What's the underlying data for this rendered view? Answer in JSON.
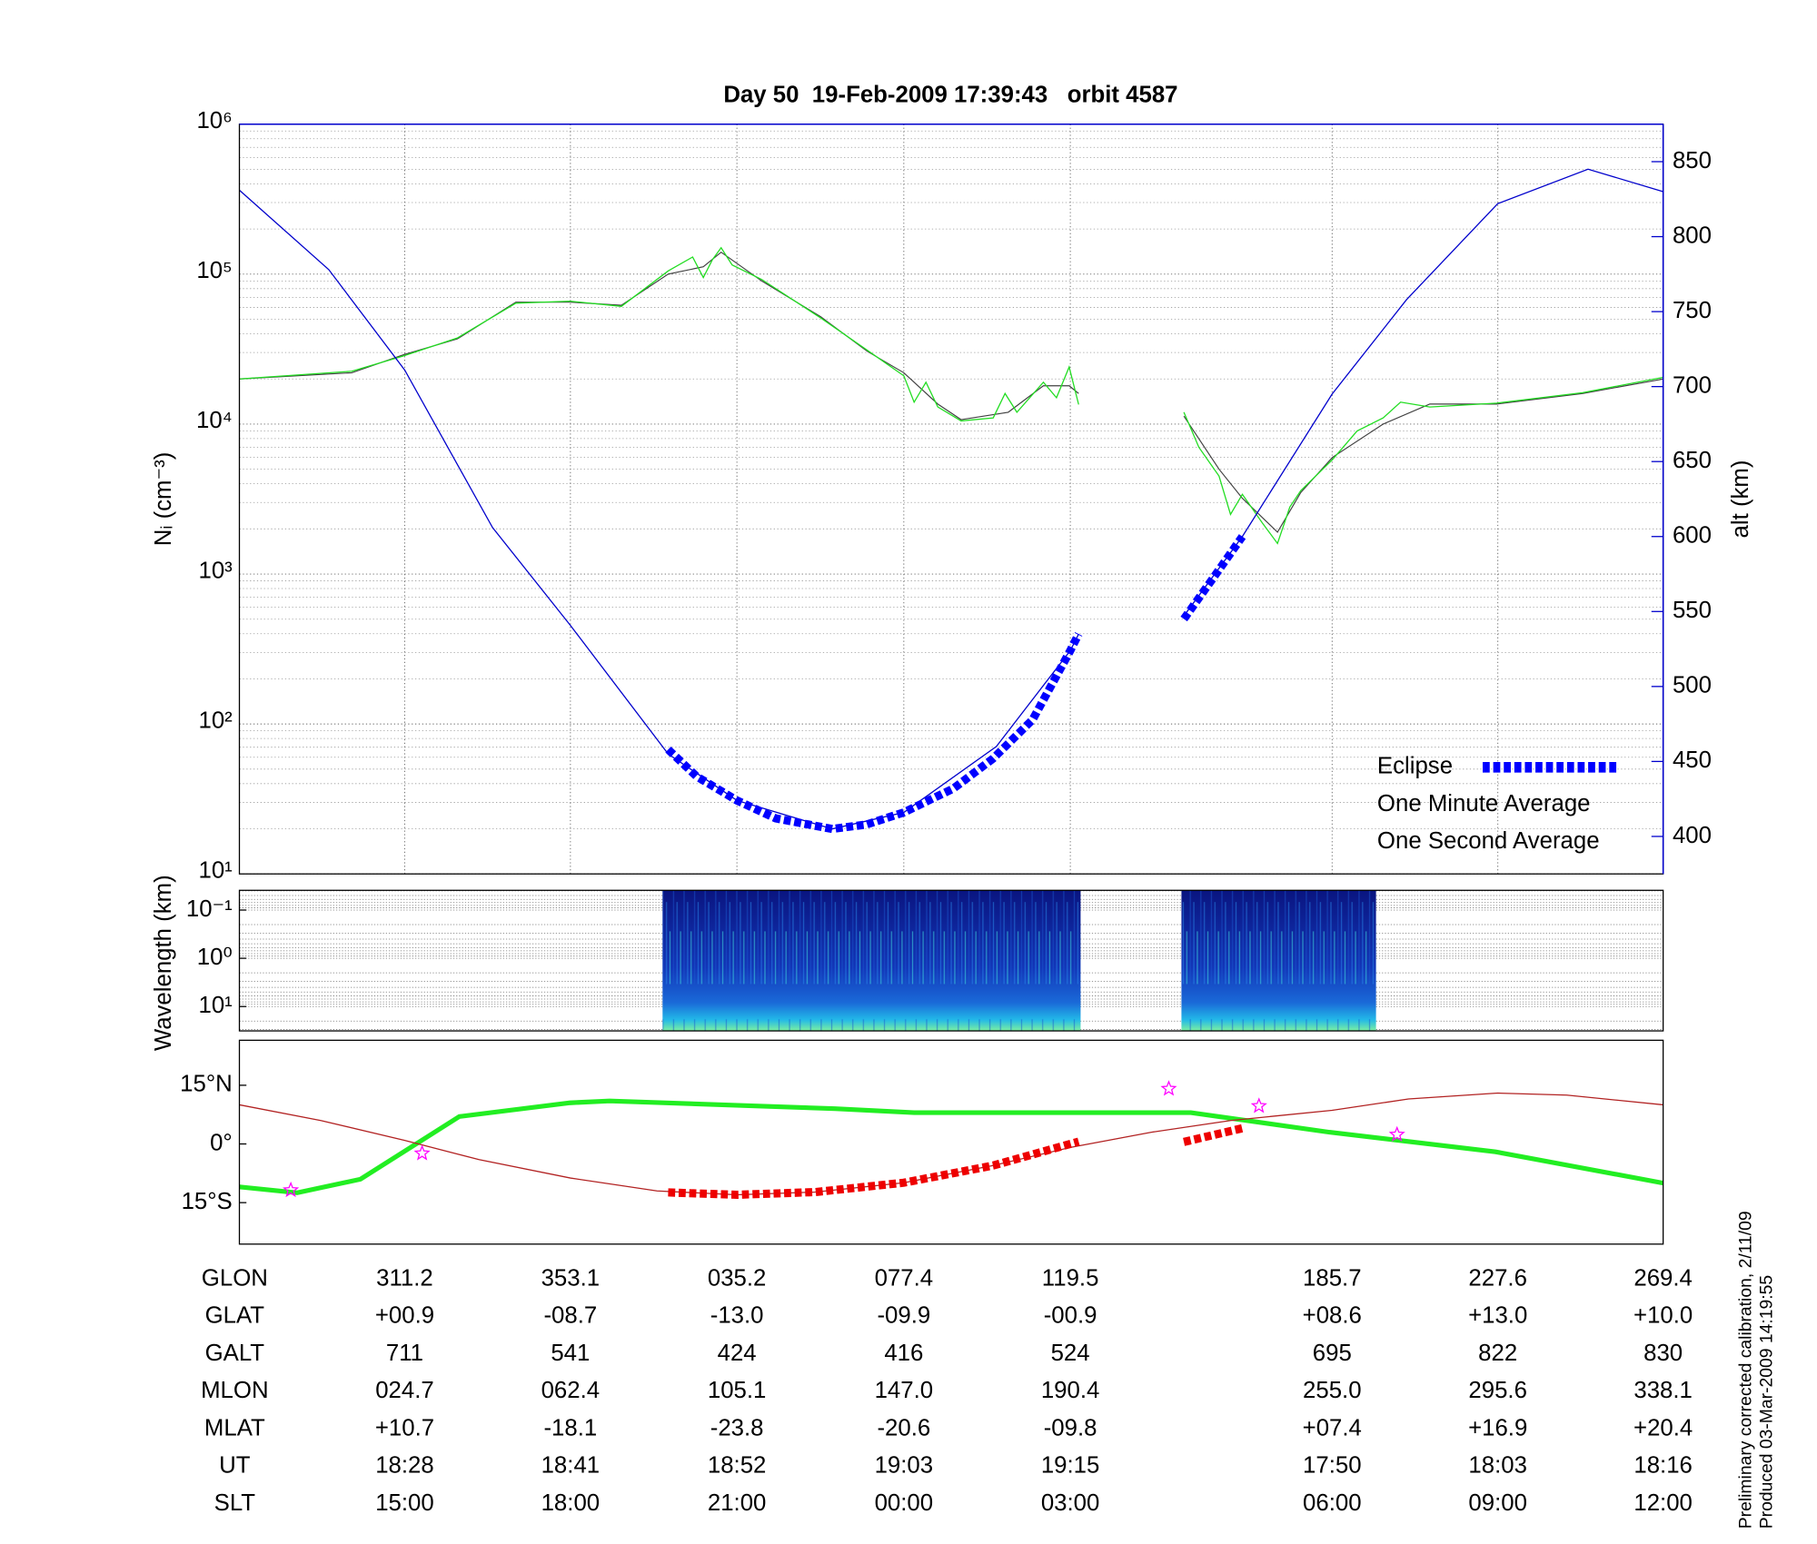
{
  "chart_data": [
    {
      "type": "line",
      "title": "Day 50  19-Feb-2009 17:39:43   orbit 4587",
      "ylabel": "Nᵢ (cm⁻³)",
      "y2label": "alt (km)",
      "log_y": true,
      "grid": true,
      "legend": "lower right",
      "xlim": [
        269.4,
        629.4
      ],
      "xticks": [
        311.2,
        353.1,
        395.2,
        437.4,
        479.5,
        545.7,
        587.6
      ],
      "ylim": [
        10,
        1000000
      ],
      "yticks": [
        {
          "value": 10,
          "label": "10¹"
        },
        {
          "value": 100,
          "label": "10²"
        },
        {
          "value": 1000,
          "label": "10³"
        },
        {
          "value": 10000,
          "label": "10⁴"
        },
        {
          "value": 100000,
          "label": "10⁵"
        },
        {
          "value": 1000000,
          "label": "10⁶"
        }
      ],
      "y2lim": [
        375,
        875
      ],
      "y2ticks": [
        400,
        450,
        500,
        550,
        600,
        650,
        700,
        750,
        800,
        850
      ],
      "y2color": "#0000cc",
      "series": [
        {
          "name": "Eclipse",
          "color": "#0000ff",
          "axis": "y2",
          "line_style": "thick-dashed",
          "x": [
            377.8,
            385,
            395.2,
            405,
            419.3,
            428,
            437.4,
            450,
            460,
            470,
            479.5,
            481.6,
            495,
            508.2,
            515,
            523
          ],
          "values": [
            458,
            440,
            424,
            412,
            405,
            408,
            416,
            432,
            452,
            478,
            524,
            535,
            null,
            545,
            570,
            600
          ]
        },
        {
          "name": "One Minute Average",
          "color": "#000000",
          "x": [
            269.4,
            297.8,
            310.9,
            324.5,
            339.3,
            353.0,
            366.0,
            377.8,
            386.7,
            391.2,
            401.5,
            416.4,
            428.2,
            437.4,
            446.0,
            451.9,
            463.8,
            472.7,
            479.2,
            481.6,
            495,
            508.2,
            517.1,
            523.0,
            531.9,
            537.8,
            545.8,
            558.6,
            570.4,
            587.3,
            609.0,
            629.4
          ],
          "values": [
            20000,
            22000,
            29000,
            37000,
            65000,
            65000,
            62000,
            100000,
            112000,
            140000,
            90000,
            52000,
            30500,
            22000,
            13600,
            10700,
            12000,
            18000,
            18000,
            16000,
            null,
            11300,
            5000,
            3200,
            1900,
            3500,
            6000,
            10000,
            13600,
            13600,
            16000,
            20000
          ]
        },
        {
          "name": "One Second Average",
          "color": "#22dd22",
          "x": [
            269.4,
            297.8,
            310.9,
            324.5,
            339.3,
            353.0,
            366.0,
            377.8,
            384,
            386.7,
            389,
            391.2,
            394,
            401.5,
            416.4,
            428.2,
            437.4,
            440,
            443,
            446.0,
            451.9,
            460,
            463,
            466,
            472.7,
            476,
            479.2,
            481.6,
            495,
            508.2,
            512,
            517.1,
            520,
            523.0,
            528,
            531.9,
            535,
            537.8,
            545.8,
            552,
            558.6,
            563,
            570.4,
            587.3,
            609.0,
            629.4
          ],
          "values": [
            20000,
            22500,
            28500,
            37500,
            64000,
            66000,
            61000,
            105000,
            130000,
            95000,
            125000,
            150000,
            115000,
            92000,
            51000,
            31000,
            21000,
            14000,
            19000,
            13000,
            10500,
            11000,
            16000,
            12000,
            19000,
            15000,
            24000,
            13500,
            null,
            12000,
            7000,
            4500,
            2500,
            3400,
            2200,
            1600,
            2800,
            3600,
            5800,
            9000,
            11000,
            14000,
            13000,
            13800,
            16200,
            20500
          ]
        },
        {
          "color": "#0000cc",
          "axis": "y2",
          "x": [
            269.4,
            292,
            311.2,
            333.4,
            353.0,
            377.8,
            395.2,
            419.3,
            437.4,
            460.8,
            479.5,
            481.6,
            495,
            508.2,
            523.0,
            545.7,
            564.5,
            587.6,
            610.4,
            629.4
          ],
          "values": [
            831,
            778,
            711,
            606,
            541,
            455,
            424,
            405,
            416,
            460,
            524,
            535,
            null,
            547,
            600,
            695,
            758,
            822,
            845,
            830
          ]
        }
      ]
    },
    {
      "type": "spectrogram",
      "ylabel": "Wavelength (km)",
      "log_y": true,
      "grid": true,
      "xlim": [
        269.4,
        629.4
      ],
      "ylim": [
        32,
        0.039
      ],
      "yticks": [
        {
          "value": 0.1,
          "label": "10⁻¹"
        },
        {
          "value": 1,
          "label": "10⁰"
        },
        {
          "value": 10,
          "label": "10¹"
        }
      ],
      "x_ranges": [
        [
          376.4,
          482.1
        ],
        [
          507.6,
          556.8
        ]
      ]
    },
    {
      "type": "map",
      "xlim": [
        269.4,
        629.4
      ],
      "ylim": [
        -25.6,
        26.5
      ],
      "yticks": [
        {
          "value": 15,
          "label": "15°N"
        },
        {
          "value": 0,
          "label": "0°"
        },
        {
          "value": -15,
          "label": "15°S"
        }
      ],
      "series": [
        {
          "color": "#22ee22",
          "line_style": "thick",
          "x": [
            269.4,
            284,
            300,
            325,
            353,
            363,
            420,
            440,
            480,
            510,
            545,
            587,
            629.4
          ],
          "values": [
            -11,
            -12.5,
            -9,
            7,
            10.5,
            11,
            9,
            8,
            8,
            8,
            3,
            -2,
            -10
          ]
        },
        {
          "color": "#b22222",
          "x": [
            269.4,
            290,
            311.2,
            330,
            353.1,
            375,
            395.2,
            415,
            437.4,
            460,
            479.5,
            500,
            520,
            545.7,
            565,
            587.6,
            605,
            629.4
          ],
          "values": [
            10,
            6,
            0.9,
            -4,
            -8.7,
            -12,
            -13,
            -12.3,
            -9.9,
            -5.5,
            -0.9,
            3,
            6,
            8.6,
            11.5,
            13,
            12.5,
            10
          ]
        },
        {
          "color": "#ee0000",
          "line_style": "thick-dashed",
          "x": [
            377.8,
            395.2,
            415,
            437.4,
            460,
            481.6,
            495,
            508.2,
            523
          ],
          "values": [
            -12.4,
            -13,
            -12.3,
            -9.9,
            -5.5,
            0.6,
            null,
            0.5,
            4
          ]
        }
      ],
      "markers": {
        "color": "#ff00ff",
        "x": [
          282.4,
          315.6,
          504.4,
          527.2,
          562.1
        ],
        "y": [
          -11.8,
          -2.4,
          14.1,
          9.7,
          2.4
        ]
      }
    }
  ],
  "table": {
    "rows": [
      [
        "GLON",
        "311.2",
        "353.1",
        "035.2",
        "077.4",
        "119.5",
        "185.7",
        "227.6",
        "269.4"
      ],
      [
        "GLAT",
        "+00.9",
        "-08.7",
        "-13.0",
        "-09.9",
        "-00.9",
        "+08.6",
        "+13.0",
        "+10.0"
      ],
      [
        "GALT",
        "711",
        "541",
        "424",
        "416",
        "524",
        "695",
        "822",
        "830"
      ],
      [
        "MLON",
        "024.7",
        "062.4",
        "105.1",
        "147.0",
        "190.4",
        "255.0",
        "295.6",
        "338.1"
      ],
      [
        "MLAT",
        "+10.7",
        "-18.1",
        "-23.8",
        "-20.6",
        "-09.8",
        "+07.4",
        "+16.9",
        "+20.4"
      ],
      [
        "UT",
        "18:28",
        "18:41",
        "18:52",
        "19:03",
        "19:15",
        "17:50",
        "18:03",
        "18:16"
      ],
      [
        "SLT",
        "15:00",
        "18:00",
        "21:00",
        "00:00",
        "03:00",
        "06:00",
        "09:00",
        "12:00"
      ]
    ]
  },
  "footnotes": [
    "Preliminary corrected calibration, 2/11/09",
    "Produced 03-Mar-2009 14:19:55"
  ]
}
